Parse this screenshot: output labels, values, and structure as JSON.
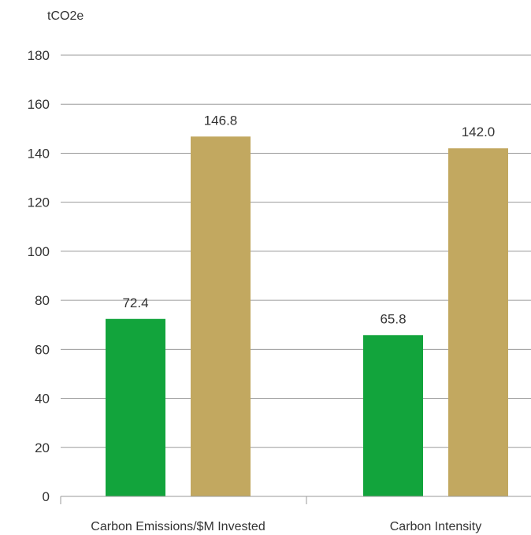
{
  "chart_data": {
    "type": "bar",
    "ylabel": "tCO2e",
    "ylim": [
      0,
      180
    ],
    "yticks": [
      0,
      20,
      40,
      60,
      80,
      100,
      120,
      140,
      160,
      180
    ],
    "categories": [
      "Carbon Emissions/$M Invested",
      "Carbon Intensity"
    ],
    "series": [
      {
        "values": [
          72.4,
          65.8
        ],
        "labels": [
          "72.4",
          "65.8"
        ],
        "color": "#12a43c"
      },
      {
        "values": [
          146.8,
          142.0
        ],
        "labels": [
          "146.8",
          "142.0"
        ],
        "color": "#c2a860"
      }
    ],
    "grid": true,
    "legend": "none"
  }
}
